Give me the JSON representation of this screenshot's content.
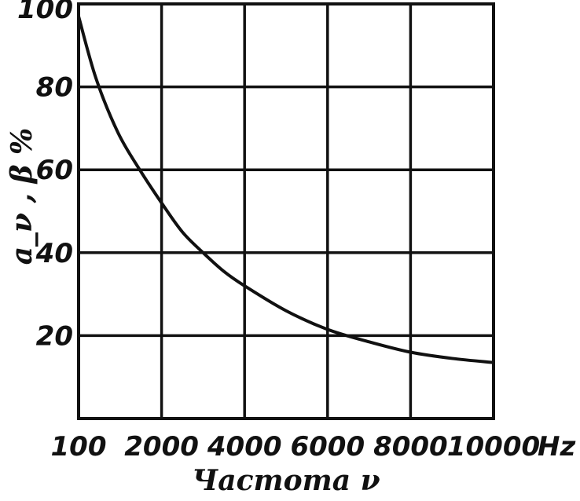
{
  "chart_data": {
    "type": "line",
    "title": "",
    "xlabel": "Частота ν",
    "ylabel": "a_ν , β %",
    "x_unit": "Hz",
    "x_tick_labels": [
      "100",
      "2000",
      "4000",
      "6000",
      "8000",
      "10000"
    ],
    "y_tick_labels": [
      "20",
      "40",
      "60",
      "80",
      "100"
    ],
    "x_ticks": [
      100,
      2000,
      4000,
      6000,
      8000,
      10000
    ],
    "y_ticks": [
      20,
      40,
      60,
      80,
      100
    ],
    "xlim": [
      100,
      10000
    ],
    "ylim": [
      0,
      100
    ],
    "grid": true,
    "series": [
      {
        "x": [
          100,
          500,
          1000,
          1500,
          2000,
          2500,
          3000,
          3500,
          4000,
          5000,
          6000,
          7000,
          8000,
          9000,
          10000
        ],
        "values": [
          97,
          82,
          69,
          60,
          52,
          45,
          40,
          35.5,
          32,
          26,
          21.5,
          18.5,
          16,
          14.5,
          13.5
        ]
      }
    ]
  }
}
